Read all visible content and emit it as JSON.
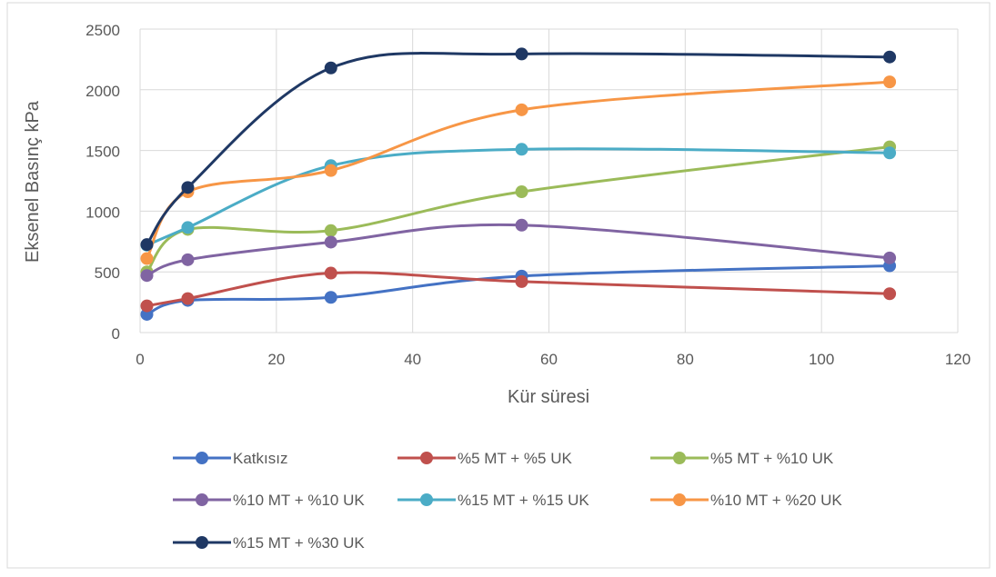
{
  "chart_data": {
    "type": "line",
    "title": "",
    "xlabel": "Kür süresi",
    "ylabel": "Eksenel Basınç kPa",
    "xlim": [
      0,
      120
    ],
    "ylim": [
      0,
      2500
    ],
    "x_ticks": [
      "0",
      "20",
      "40",
      "60",
      "80",
      "100",
      "120"
    ],
    "y_ticks": [
      "0",
      "500",
      "1000",
      "1500",
      "2000",
      "2500"
    ],
    "grid": true,
    "smooth": true,
    "legend_position": "bottom",
    "x": [
      1,
      7,
      28,
      56,
      110
    ],
    "series": [
      {
        "name": "Katkısız",
        "color": "#4472C4",
        "values": [
          150,
          265,
          290,
          465,
          550
        ]
      },
      {
        "name": "%5 MT + %5 UK",
        "color": "#C0504D",
        "values": [
          220,
          280,
          490,
          420,
          320
        ]
      },
      {
        "name": "%5 MT + %10 UK",
        "color": "#9BBB59",
        "values": [
          500,
          850,
          840,
          1160,
          1530
        ]
      },
      {
        "name": "%10 MT + %10 UK",
        "color": "#8064A2",
        "values": [
          470,
          600,
          745,
          885,
          615
        ]
      },
      {
        "name": "%15 MT + %15 UK",
        "color": "#4BACC6",
        "values": [
          720,
          865,
          1375,
          1510,
          1480
        ]
      },
      {
        "name": "%10 MT + %20 UK",
        "color": "#F79646",
        "values": [
          610,
          1160,
          1335,
          1835,
          2065
        ]
      },
      {
        "name": "%15 MT + %30 UK",
        "color": "#1F3864",
        "values": [
          725,
          1195,
          2180,
          2295,
          2270
        ]
      }
    ]
  }
}
